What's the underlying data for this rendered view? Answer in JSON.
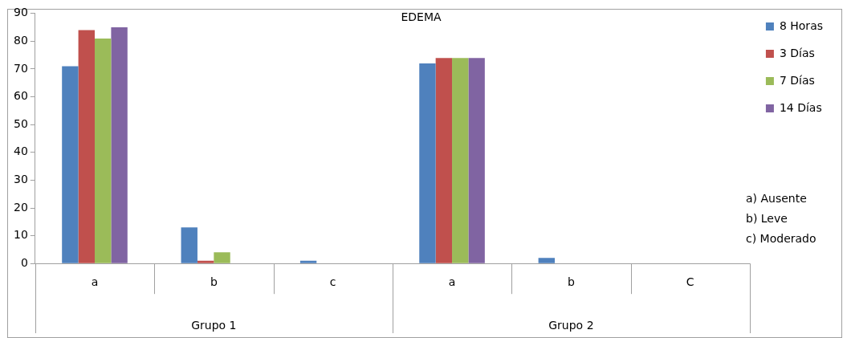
{
  "chart_data": {
    "type": "bar",
    "title": "EDEMA",
    "categories": [
      "a",
      "b",
      "c",
      "a",
      "b",
      "C"
    ],
    "series": [
      {
        "name": "8 Horas",
        "color": "#4f81bd",
        "values": [
          71,
          13,
          1,
          72,
          2,
          0
        ]
      },
      {
        "name": "3 Días",
        "color": "#c0504d",
        "values": [
          84,
          1,
          0,
          74,
          0,
          0
        ]
      },
      {
        "name": "7 Días",
        "color": "#9bbb59",
        "values": [
          81,
          4,
          0,
          74,
          0,
          0
        ]
      },
      {
        "name": "14 Días",
        "color": "#8064a2",
        "values": [
          85,
          0,
          0,
          74,
          0,
          0
        ]
      }
    ],
    "ylim": [
      0,
      90
    ],
    "yticks": [
      0,
      10,
      20,
      30,
      40,
      50,
      60,
      70,
      80,
      90
    ],
    "grid": false,
    "legend": "right",
    "annotations": [
      "Grupo 1",
      "Grupo 2",
      "a) Ausente",
      "b) Leve",
      "c) Moderado"
    ]
  }
}
